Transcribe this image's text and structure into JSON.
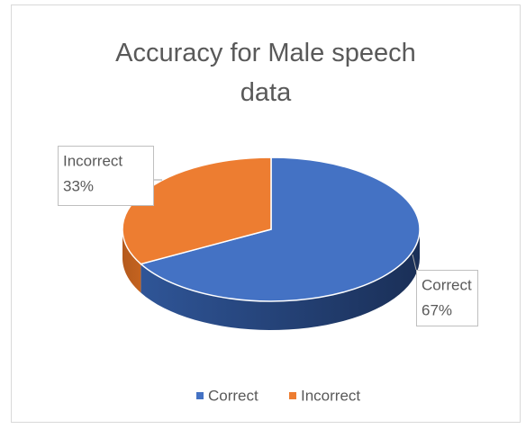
{
  "chart_data": {
    "type": "pie",
    "title": "Accuracy for Male speech data",
    "categories": [
      "Correct",
      "Incorrect"
    ],
    "values": [
      67,
      33
    ],
    "value_labels": [
      "67%",
      "33%"
    ],
    "colors": [
      "#4472c4",
      "#ed7d31"
    ],
    "legend": "bottom"
  }
}
